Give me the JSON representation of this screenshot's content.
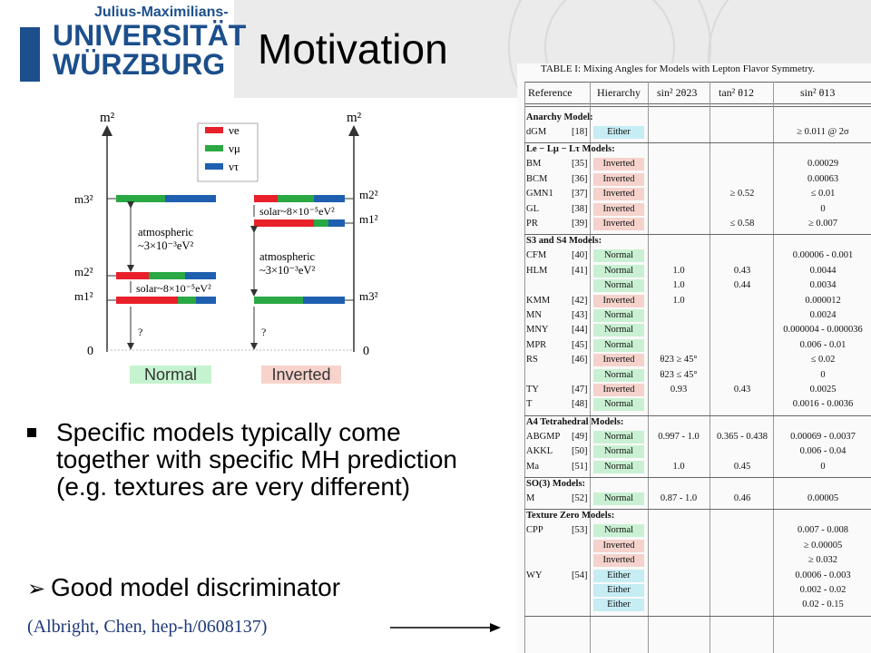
{
  "header": {
    "logo_sup": "Julius-Maximilians-",
    "logo_line1": "UNIVERSITÄT",
    "logo_line2": "WÜRZBURG"
  },
  "title": "Motivation",
  "diagram": {
    "y_label_left": "m²",
    "y_label_right": "m²",
    "zero_left": "0",
    "zero_right": "0",
    "legend": [
      {
        "label": "νe",
        "color": "#e8202a"
      },
      {
        "label": "νμ",
        "color": "#2aa844"
      },
      {
        "label": "ντ",
        "color": "#1f5fb0"
      }
    ],
    "left_levels": [
      "m3²",
      "m2²",
      "m1²"
    ],
    "right_levels": [
      "m2²",
      "m1²",
      "m3²"
    ],
    "atm_left_1": "atmospheric",
    "atm_left_2": "~3×10⁻³eV²",
    "solar_left": "solar~8×10⁻⁵eV²",
    "atm_right_1": "atmospheric",
    "atm_right_2": "~3×10⁻³eV²",
    "solar_right": "solar~8×10⁻⁵eV²",
    "q_left": "?",
    "q_right": "?",
    "label_normal": "Normal",
    "label_inverted": "Inverted"
  },
  "bullets": {
    "b1": "Specific models typically come together with specific MH prediction (e.g. textures are very different)",
    "b2_mark": "➢",
    "b2": "Good model discriminator"
  },
  "citation": "(Albright, Chen, hep-h/0608137)",
  "table": {
    "caption": "TABLE I: Mixing Angles for Models with Lepton Flavor Symmetry.",
    "headers": [
      "Reference",
      "Hierarchy",
      "sin² 2θ23",
      "tan² θ12",
      "sin² θ13"
    ],
    "sections": [
      {
        "title": "Anarchy Model:",
        "rows": [
          {
            "ref": "dGM",
            "num": "[18]",
            "hier": "Either",
            "s23": "",
            "t12": "",
            "s13": "≥ 0.011 @ 2σ"
          }
        ]
      },
      {
        "title": "Le − Lμ − Lτ Models:",
        "rows": [
          {
            "ref": "BM",
            "num": "[35]",
            "hier": "Inverted",
            "s23": "",
            "t12": "",
            "s13": "0.00029"
          },
          {
            "ref": "BCM",
            "num": "[36]",
            "hier": "Inverted",
            "s23": "",
            "t12": "",
            "s13": "0.00063"
          },
          {
            "ref": "GMN1",
            "num": "[37]",
            "hier": "Inverted",
            "s23": "",
            "t12": "≥ 0.52",
            "s13": "≤ 0.01"
          },
          {
            "ref": "GL",
            "num": "[38]",
            "hier": "Inverted",
            "s23": "",
            "t12": "",
            "s13": "0"
          },
          {
            "ref": "PR",
            "num": "[39]",
            "hier": "Inverted",
            "s23": "",
            "t12": "≤ 0.58",
            "s13": "≥ 0.007"
          }
        ]
      },
      {
        "title": "S3 and S4 Models:",
        "rows": [
          {
            "ref": "CFM",
            "num": "[40]",
            "hier": "Normal",
            "s23": "",
            "t12": "",
            "s13": "0.00006 - 0.001"
          },
          {
            "ref": "HLM",
            "num": "[41]",
            "hier": "Normal",
            "s23": "1.0",
            "t12": "0.43",
            "s13": "0.0044"
          },
          {
            "ref": "",
            "num": "",
            "hier": "Normal",
            "s23": "1.0",
            "t12": "0.44",
            "s13": "0.0034"
          },
          {
            "ref": "KMM",
            "num": "[42]",
            "hier": "Inverted",
            "s23": "1.0",
            "t12": "",
            "s13": "0.000012"
          },
          {
            "ref": "MN",
            "num": "[43]",
            "hier": "Normal",
            "s23": "",
            "t12": "",
            "s13": "0.0024"
          },
          {
            "ref": "MNY",
            "num": "[44]",
            "hier": "Normal",
            "s23": "",
            "t12": "",
            "s13": "0.000004 - 0.000036"
          },
          {
            "ref": "MPR",
            "num": "[45]",
            "hier": "Normal",
            "s23": "",
            "t12": "",
            "s13": "0.006 - 0.01"
          },
          {
            "ref": "RS",
            "num": "[46]",
            "hier": "Inverted",
            "s23": "θ23 ≥ 45°",
            "t12": "",
            "s13": "≤ 0.02"
          },
          {
            "ref": "",
            "num": "",
            "hier": "Normal",
            "s23": "θ23 ≤ 45°",
            "t12": "",
            "s13": "0"
          },
          {
            "ref": "TY",
            "num": "[47]",
            "hier": "Inverted",
            "s23": "0.93",
            "t12": "0.43",
            "s13": "0.0025"
          },
          {
            "ref": "T",
            "num": "[48]",
            "hier": "Normal",
            "s23": "",
            "t12": "",
            "s13": "0.0016 - 0.0036"
          }
        ]
      },
      {
        "title": "A4 Tetrahedral Models:",
        "rows": [
          {
            "ref": "ABGMP",
            "num": "[49]",
            "hier": "Normal",
            "s23": "0.997 - 1.0",
            "t12": "0.365 - 0.438",
            "s13": "0.00069 - 0.0037"
          },
          {
            "ref": "AKKL",
            "num": "[50]",
            "hier": "Normal",
            "s23": "",
            "t12": "",
            "s13": "0.006 - 0.04"
          },
          {
            "ref": "Ma",
            "num": "[51]",
            "hier": "Normal",
            "s23": "1.0",
            "t12": "0.45",
            "s13": "0"
          }
        ]
      },
      {
        "title": "SO(3) Models:",
        "rows": [
          {
            "ref": "M",
            "num": "[52]",
            "hier": "Normal",
            "s23": "0.87 - 1.0",
            "t12": "0.46",
            "s13": "0.00005"
          }
        ]
      },
      {
        "title": "Texture Zero Models:",
        "rows": [
          {
            "ref": "CPP",
            "num": "[53]",
            "hier": "Normal",
            "s23": "",
            "t12": "",
            "s13": "0.007 - 0.008"
          },
          {
            "ref": "",
            "num": "",
            "hier": "Inverted",
            "s23": "",
            "t12": "",
            "s13": "≥ 0.00005"
          },
          {
            "ref": "",
            "num": "",
            "hier": "Inverted",
            "s23": "",
            "t12": "",
            "s13": "≥ 0.032"
          },
          {
            "ref": "WY",
            "num": "[54]",
            "hier": "Either",
            "s23": "",
            "t12": "",
            "s13": "0.0006 - 0.003"
          },
          {
            "ref": "",
            "num": "",
            "hier": "Either",
            "s23": "",
            "t12": "",
            "s13": "0.002 - 0.02"
          },
          {
            "ref": "",
            "num": "",
            "hier": "Either",
            "s23": "",
            "t12": "",
            "s13": "0.02 - 0.15"
          }
        ]
      }
    ]
  }
}
